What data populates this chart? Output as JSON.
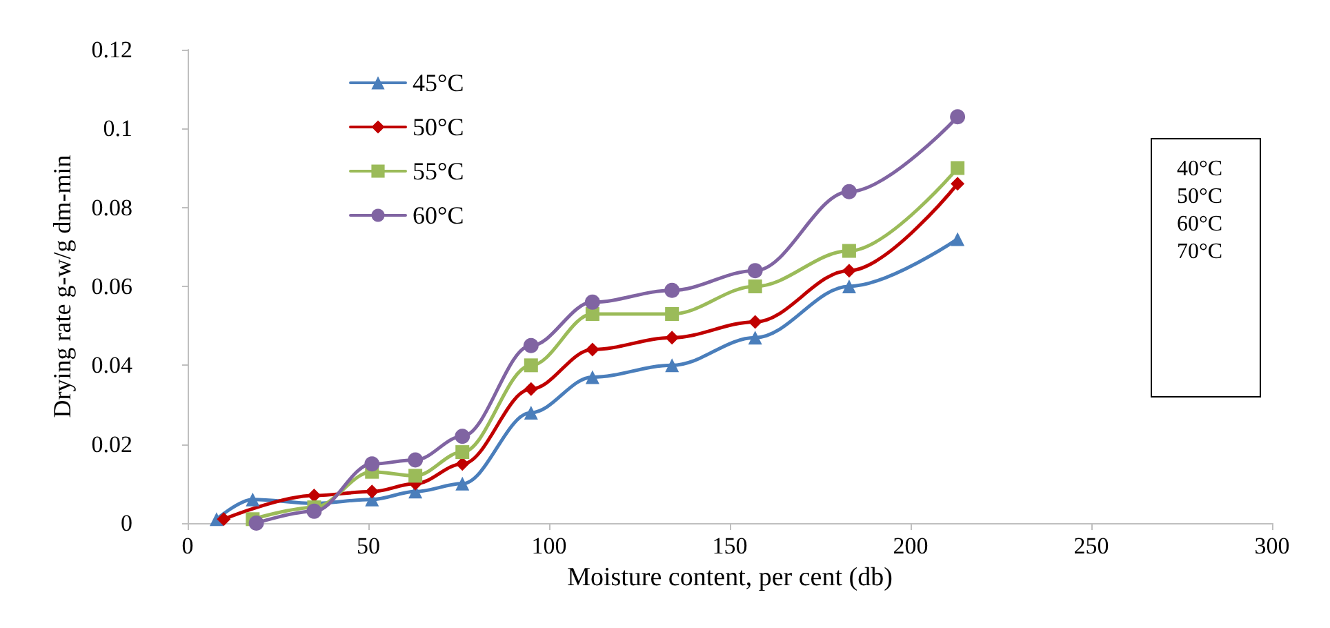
{
  "chart_data": {
    "type": "line",
    "xlabel": "Moisture content, per cent (db)",
    "ylabel": "Drying rate g-w/g dm-min",
    "xlim": [
      0,
      300
    ],
    "xticks": [
      0,
      50,
      100,
      150,
      200,
      250,
      300
    ],
    "ylim": [
      0,
      0.12
    ],
    "yticks": [
      0,
      0.02,
      0.04,
      0.06,
      0.08,
      0.1,
      0.12
    ],
    "grid": false,
    "legend": "top left",
    "annotations": [
      "40°C\n50°C\n60°C\n70°C"
    ],
    "series": [
      {
        "name": "45°C",
        "color": "#4a7ebb",
        "marker": "triangle",
        "x": [
          8,
          18,
          35,
          51,
          63,
          76,
          95,
          112,
          134,
          157,
          183,
          213
        ],
        "values": [
          0.001,
          0.006,
          0.005,
          0.006,
          0.008,
          0.01,
          0.028,
          0.037,
          0.04,
          0.047,
          0.06,
          0.072
        ]
      },
      {
        "name": "50°C",
        "color": "#c00000",
        "marker": "diamond",
        "x": [
          10,
          35,
          51,
          63,
          76,
          95,
          112,
          134,
          157,
          183,
          213
        ],
        "values": [
          0.001,
          0.007,
          0.008,
          0.01,
          0.015,
          0.034,
          0.044,
          0.047,
          0.051,
          0.064,
          0.086
        ]
      },
      {
        "name": "55°C",
        "color": "#9bbb59",
        "marker": "square",
        "x": [
          18,
          35,
          51,
          63,
          76,
          95,
          112,
          134,
          157,
          183,
          213
        ],
        "values": [
          0.001,
          0.004,
          0.013,
          0.012,
          0.018,
          0.04,
          0.053,
          0.053,
          0.06,
          0.069,
          0.09
        ]
      },
      {
        "name": "60°C",
        "color": "#8064a2",
        "marker": "circle",
        "x": [
          19,
          35,
          51,
          63,
          76,
          95,
          112,
          134,
          157,
          183,
          213
        ],
        "values": [
          0.0,
          0.003,
          0.015,
          0.016,
          0.022,
          0.045,
          0.056,
          0.059,
          0.064,
          0.084,
          0.103
        ]
      }
    ]
  }
}
